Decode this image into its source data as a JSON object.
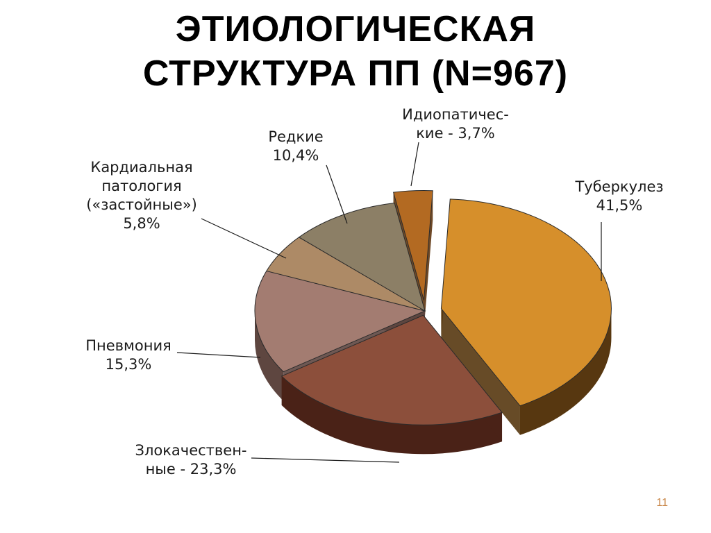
{
  "title_lines": [
    "ЭТИОЛОГИЧЕСКАЯ",
    "СТРУКТУРА ПП (N=967)"
  ],
  "page_number": "11",
  "chart_data": {
    "type": "pie",
    "title": "ЭТИОЛОГИЧЕСКАЯ СТРУКТУРА ПП (N=967)",
    "slices": [
      {
        "key": "tb",
        "label_lines": [
          "Туберкулез",
          "41,5%"
        ],
        "value": 41.5,
        "color": "#d68f2b",
        "side": "#573710"
      },
      {
        "key": "malignant",
        "label_lines": [
          "Злокачествен-",
          "ные - 23,3%"
        ],
        "value": 23.3,
        "color": "#8c4f3b",
        "side": "#4a2217"
      },
      {
        "key": "pneumonia",
        "label_lines": [
          "Пневмония",
          "15,3%"
        ],
        "value": 15.3,
        "color": "#a37c71",
        "side": "#5e4640"
      },
      {
        "key": "cardiac",
        "label_lines": [
          "Кардиальная",
          "патология",
          "(«застойные»)",
          "5,8%"
        ],
        "value": 5.8,
        "color": "#ad8a66",
        "side": "#6b5133"
      },
      {
        "key": "rare",
        "label_lines": [
          "Редкие",
          "10,4%"
        ],
        "value": 10.4,
        "color": "#8c7f66",
        "side": "#4e4636"
      },
      {
        "key": "idiopathic",
        "label_lines": [
          "Идиопатичес-",
          "кие - 3,7%"
        ],
        "value": 3.7,
        "color": "#b36a22",
        "side": "#5e3510"
      }
    ]
  }
}
